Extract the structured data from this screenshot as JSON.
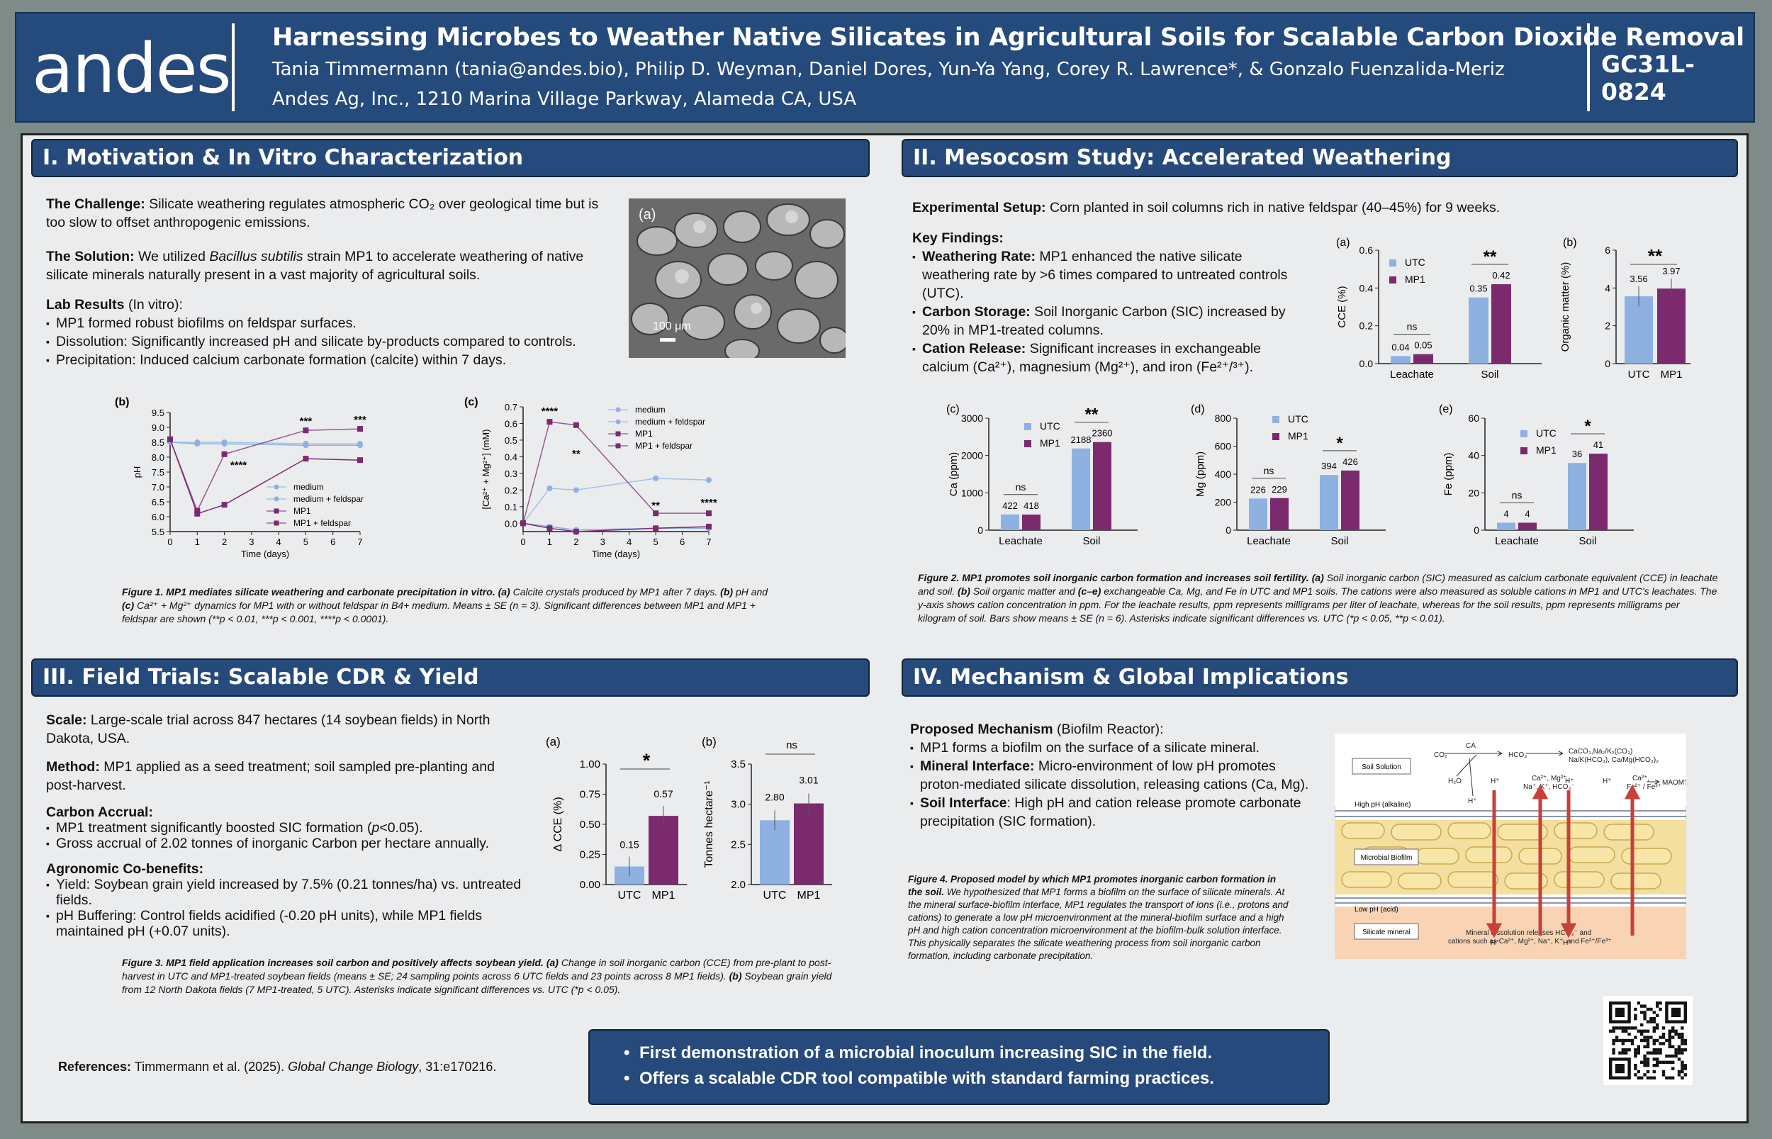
{
  "header": {
    "logo": "andes",
    "title": "Harnessing Microbes to Weather Native Silicates in Agricultural Soils for Scalable Carbon Dioxide Removal",
    "authors": "Tania Timmermann (tania@andes.bio), Philip D. Weyman, Daniel Dores, Yun-Ya Yang, Corey R. Lawrence*,  & Gonzalo Fuenzalida-Meriz",
    "affiliation": "Andes Ag, Inc., 1210 Marina Village Parkway, Alameda CA, USA",
    "code": "GC31L-0824"
  },
  "colors": {
    "header_bg": "#254a7c",
    "utc": "#8fb1e2",
    "mp1": "#7b2a6e",
    "background": "#ebecee"
  },
  "sections": {
    "s1": "I. Motivation & In Vitro Characterization",
    "s2": "II. Mesocosm Study: Accelerated Weathering",
    "s3": "III. Field Trials: Scalable CDR & Yield",
    "s4": "IV. Mechanism & Global Implications"
  },
  "s1": {
    "challenge_label": "The Challenge:",
    "challenge_text": " Silicate weathering regulates atmospheric CO₂ over geological time but is too slow to offset anthropogenic emissions.",
    "solution_label": "The Solution:",
    "solution_text_a": " We utilized ",
    "solution_species": "Bacillus subtilis",
    "solution_text_b": " strain MP1 to accelerate weathering of native silicate minerals naturally present in a vast majority of agricultural soils.",
    "lab_label": "Lab Results",
    "lab_suffix": " (In vitro):",
    "bullets": [
      "MP1 formed robust biofilms on feldspar surfaces.",
      "Dissolution: Significantly increased pH and silicate by-products compared to controls.",
      "Precipitation: Induced calcium carbonate formation (calcite) within 7 days."
    ],
    "image_label": "(a)",
    "scale_bar": "100 μm",
    "fig_caption_bold": "Figure 1. MP1 mediates silicate weathering and carbonate precipitation in vitro. (a)",
    "fig_caption_a": " Calcite crystals produced by MP1 after 7 days. ",
    "fig_caption_b_bold": "(b)",
    "fig_caption_b": " pH and ",
    "fig_caption_c_bold": "(c)",
    "fig_caption_c": " Ca²⁺ + Mg²⁺ dynamics for MP1 with or without feldspar in B4+ medium. Means ± SE (n = 3). Significant differences between MP1 and MP1 + feldspar are shown (**p < 0.01, ***p < 0.001, ****p < 0.0001)."
  },
  "s2": {
    "setup_label": "Experimental Setup:",
    "setup_text": " Corn planted in soil columns rich in native feldspar (40–45%) for 9 weeks.",
    "findings_label": "Key Findings:",
    "b1_label": "Weathering Rate:",
    "b1_text": " MP1 enhanced the native silicate weathering rate by >6 times compared to untreated controls (UTC).",
    "b2_label": "Carbon Storage:",
    "b2_text": " Soil Inorganic Carbon (SIC) increased by 20% in MP1-treated columns.",
    "b3_label": "Cation Release:",
    "b3_text": " Significant increases in exchangeable calcium (Ca²⁺), magnesium (Mg²⁺), and iron (Fe²⁺/³⁺).",
    "fig_caption_bold": "Figure 2. MP1 promotes soil inorganic carbon formation and increases soil fertility. (a)",
    "fig_caption_a": " Soil inorganic carbon (SIC) measured as calcium carbonate equivalent (CCE) in leachate and soil. ",
    "fig_caption_b_bold": "(b)",
    "fig_caption_b": " Soil organic matter and ",
    "fig_caption_c_bold": "(c–e)",
    "fig_caption_c": " exchangeable Ca, Mg, and Fe in UTC and MP1 soils. The cations were also measured as soluble cations in MP1 and UTC’s leachates. The y-axis shows cation concentration in ppm. For the leachate results, ppm represents milligrams per liter of leachate, whereas for the soil results, ppm represents milligrams per kilogram of soil. Bars show means ± SE (n = 6). Asterisks indicate significant differences vs. UTC (*p < 0.05, **p < 0.01)."
  },
  "s3": {
    "scale_label": "Scale:",
    "scale_text": " Large-scale trial across 847 hectares (14 soybean fields) in North Dakota, USA.",
    "method_label": "Method:",
    "method_text": " MP1 applied as a seed treatment; soil sampled pre-planting and post-harvest.",
    "accrual_label": "Carbon Accrual:",
    "accrual_b1a": "MP1 treatment significantly boosted SIC formation (",
    "accrual_b1p": "p",
    "accrual_b1b": "<0.05).",
    "accrual_b2": "Gross accrual of 2.02 tonnes of inorganic Carbon per hectare annually.",
    "agro_label": "Agronomic Co-benefits:",
    "agro_b1": "Yield: Soybean grain yield increased by 7.5% (0.21 tonnes/ha) vs. untreated fields.",
    "agro_b2": "pH Buffering: Control fields acidified (-0.20 pH units), while MP1 fields maintained pH (+0.07 units).",
    "fig_caption_bold": "Figure 3. MP1 field application increases soil carbon and positively affects soybean yield. (a)",
    "fig_caption_a": " Change in soil inorganic carbon (CCE) from pre-plant to post-harvest in UTC and MP1-treated soybean fields (means ± SE; 24 sampling points across 6 UTC fields and 23 points across 8 MP1 fields). ",
    "fig_caption_b_bold": "(b)",
    "fig_caption_b": " Soybean grain yield from 12 North Dakota fields (7 MP1-treated, 5 UTC). Asterisks indicate significant differences vs. UTC (*p < 0.05)."
  },
  "s4": {
    "mech_label": "Proposed Mechanism",
    "mech_suffix": " (Biofilm Reactor):",
    "b1": "MP1 forms a biofilm on the surface of a silicate mineral.",
    "b2_label": "Mineral Interface:",
    "b2_text": " Micro-environment of low pH promotes proton-mediated silicate dissolution, releasing cations (Ca, Mg).",
    "b3_label": "Soil Interface",
    "b3_text": ": High pH and cation release promote carbonate precipitation (SIC formation).",
    "fig_caption_bold": "Figure 4. Proposed model by which MP1 promotes inorganic carbon formation in the soil.",
    "fig_caption": " We hypothesized that MP1 forms a biofilm on the surface of silicate minerals. At the mineral surface-biofilm interface, MP1 regulates the transport of ions (i.e., protons and cations) to generate a low pH microenvironment at the mineral-biofilm surface and a high pH and high cation concentration microenvironment at the biofilm-bulk solution interface. This physically separates the silicate weathering process from soil inorganic carbon formation, including carbonate precipitation.",
    "diagram": {
      "soil_solution": "Soil Solution",
      "high_ph": "High pH (alkaline)",
      "biofilm": "Microbial Biofilm",
      "low_ph": "Low pH (acid)",
      "silicate": "Silicate mineral",
      "co2": "CO₂",
      "ca": "CA",
      "hco3": "HCO₃⁻",
      "h2o": "H₂O",
      "h": "H⁺",
      "products1": "CaCO₃,Na₂/K₂(CO₃)",
      "products2": "Na/K(HCO₃), Ca/Mg(HCO₃)₂",
      "maom": "MAOM?",
      "cations_left1": "Ca²⁺, Mg²⁺,",
      "cations_left2": "Na⁺, K⁺, HCO₃⁻",
      "cations_right1": "Ca²⁺,",
      "cations_right2": "Fe²⁺ / Fe³⁺",
      "release1": "Mineral dissolution releases HCO₃⁻ and",
      "release2": "cations such as Ca²⁺, Mg²⁺, Na⁺, K⁺, and Fe²⁺/Fe³⁺"
    }
  },
  "callout": [
    "First demonstration of a microbial inoculum increasing SIC in the field.",
    "Offers a scalable CDR tool compatible with standard farming practices."
  ],
  "references": {
    "label": "References:",
    "text_a": " Timmermann et al. (2025). ",
    "journal": "Global Change Biology",
    "text_b": ", 31:e170216."
  },
  "chart_data": [
    {
      "id": "fig1b",
      "panel_label": "(b)",
      "type": "line",
      "xlabel": "Time (days)",
      "ylabel": "pH",
      "x": [
        0,
        1,
        2,
        5,
        7
      ],
      "xlim": [
        0,
        7
      ],
      "ylim": [
        5.5,
        9.5
      ],
      "yticks": [
        "5.5",
        "6.0",
        "6.5",
        "7.0",
        "7.5",
        "8.0",
        "8.5",
        "9.0",
        "9.5"
      ],
      "xticks": [
        "0",
        "1",
        "2",
        "3",
        "4",
        "5",
        "6",
        "7"
      ],
      "series": [
        {
          "name": "medium",
          "values": [
            8.5,
            8.45,
            8.45,
            8.4,
            8.4
          ]
        },
        {
          "name": "medium + feldspar",
          "values": [
            8.5,
            8.5,
            8.5,
            8.45,
            8.45
          ]
        },
        {
          "name": "MP1",
          "values": [
            8.6,
            6.1,
            6.4,
            7.95,
            7.9
          ]
        },
        {
          "name": "MP1 + feldspar",
          "values": [
            8.6,
            6.2,
            8.1,
            8.9,
            8.95
          ]
        }
      ],
      "annotations": [
        {
          "x": 2,
          "text": "****"
        },
        {
          "x": 5,
          "text": "***"
        },
        {
          "x": 7,
          "text": "***"
        }
      ]
    },
    {
      "id": "fig1c",
      "panel_label": "(c)",
      "type": "line",
      "xlabel": "Time (days)",
      "ylabel": "[Ca²⁺ + Mg²⁺] (mM)",
      "x": [
        0,
        1,
        2,
        5,
        7
      ],
      "xlim": [
        0,
        7
      ],
      "ylim": [
        -0.05,
        0.7
      ],
      "yticks": [
        "0.0",
        "0.1",
        "0.2",
        "0.3",
        "0.4",
        "0.5",
        "0.6",
        "0.7"
      ],
      "xticks": [
        "0",
        "1",
        "2",
        "3",
        "4",
        "5",
        "6",
        "7"
      ],
      "series": [
        {
          "name": "medium",
          "values": [
            0.0,
            -0.02,
            -0.04,
            -0.03,
            -0.03
          ]
        },
        {
          "name": "medium + feldspar",
          "values": [
            0.0,
            0.21,
            0.2,
            0.27,
            0.26
          ]
        },
        {
          "name": "MP1",
          "values": [
            0.0,
            -0.03,
            -0.05,
            -0.03,
            -0.02
          ]
        },
        {
          "name": "MP1 + feldspar",
          "values": [
            0.0,
            0.61,
            0.59,
            0.06,
            0.06
          ]
        }
      ],
      "annotations": [
        {
          "x": 1,
          "text": "****"
        },
        {
          "x": 2,
          "text": "**"
        },
        {
          "x": 5,
          "text": "**"
        },
        {
          "x": 7,
          "text": "****"
        }
      ]
    },
    {
      "id": "fig2a",
      "panel_label": "(a)",
      "type": "bar",
      "ylabel": "CCE (%)",
      "categories": [
        "Leachate",
        "Soil"
      ],
      "ylim": [
        0,
        0.6
      ],
      "yticks": [
        "0.0",
        "0.2",
        "0.4",
        "0.6"
      ],
      "series": [
        {
          "name": "UTC",
          "values": [
            0.04,
            0.35
          ]
        },
        {
          "name": "MP1",
          "values": [
            0.05,
            0.42
          ]
        }
      ],
      "value_labels": [
        [
          "0.04",
          "0.05"
        ],
        [
          "0.35",
          "0.42"
        ]
      ],
      "significance": [
        "ns",
        "**"
      ]
    },
    {
      "id": "fig2b",
      "panel_label": "(b)",
      "type": "bar",
      "ylabel": "Organic matter (%)",
      "categories": [
        "UTC",
        "MP1"
      ],
      "ylim": [
        0,
        6
      ],
      "yticks": [
        "0",
        "2",
        "4",
        "6"
      ],
      "values": [
        3.56,
        3.97
      ],
      "value_labels": [
        "3.56",
        "3.97"
      ],
      "significance": [
        "**"
      ]
    },
    {
      "id": "fig2c",
      "panel_label": "(c)",
      "type": "bar",
      "ylabel": "Ca (ppm)",
      "categories": [
        "Leachate",
        "Soil"
      ],
      "ylim": [
        0,
        3000
      ],
      "yticks": [
        "0",
        "1000",
        "2000",
        "3000"
      ],
      "series": [
        {
          "name": "UTC",
          "values": [
            422,
            2188
          ]
        },
        {
          "name": "MP1",
          "values": [
            418,
            2360
          ]
        }
      ],
      "value_labels": [
        [
          "422",
          "418"
        ],
        [
          "2188",
          "2360"
        ]
      ],
      "significance": [
        "ns",
        "**"
      ]
    },
    {
      "id": "fig2d",
      "panel_label": "(d)",
      "type": "bar",
      "ylabel": "Mg (ppm)",
      "categories": [
        "Leachate",
        "Soil"
      ],
      "ylim": [
        0,
        800
      ],
      "yticks": [
        "0",
        "200",
        "400",
        "600",
        "800"
      ],
      "series": [
        {
          "name": "UTC",
          "values": [
            226,
            394
          ]
        },
        {
          "name": "MP1",
          "values": [
            229,
            426
          ]
        }
      ],
      "value_labels": [
        [
          "226",
          "229"
        ],
        [
          "394",
          "426"
        ]
      ],
      "significance": [
        "ns",
        "*"
      ]
    },
    {
      "id": "fig2e",
      "panel_label": "(e)",
      "type": "bar",
      "ylabel": "Fe (ppm)",
      "categories": [
        "Leachate",
        "Soil"
      ],
      "ylim": [
        0,
        60
      ],
      "yticks": [
        "0",
        "20",
        "40",
        "60"
      ],
      "series": [
        {
          "name": "UTC",
          "values": [
            4,
            36
          ]
        },
        {
          "name": "MP1",
          "values": [
            4,
            41
          ]
        }
      ],
      "value_labels": [
        [
          "4",
          "4"
        ],
        [
          "36",
          "41"
        ]
      ],
      "significance": [
        "ns",
        "*"
      ]
    },
    {
      "id": "fig3a",
      "panel_label": "(a)",
      "type": "bar",
      "ylabel": "Δ CCE (%)",
      "categories": [
        "UTC",
        "MP1"
      ],
      "ylim": [
        0,
        1.0
      ],
      "yticks": [
        "0.00",
        "0.25",
        "0.50",
        "0.75",
        "1.00"
      ],
      "values": [
        0.15,
        0.57
      ],
      "value_labels": [
        "0.15",
        "0.57"
      ],
      "significance": [
        "*"
      ]
    },
    {
      "id": "fig3b",
      "panel_label": "(b)",
      "type": "bar",
      "ylabel": "Tonnes hectare⁻¹",
      "categories": [
        "UTC",
        "MP1"
      ],
      "ylim": [
        2.0,
        3.5
      ],
      "yticks": [
        "2.0",
        "2.5",
        "3.0",
        "3.5"
      ],
      "values": [
        2.8,
        3.01
      ],
      "value_labels": [
        "2.80",
        "3.01"
      ],
      "significance": [
        "ns"
      ]
    }
  ]
}
